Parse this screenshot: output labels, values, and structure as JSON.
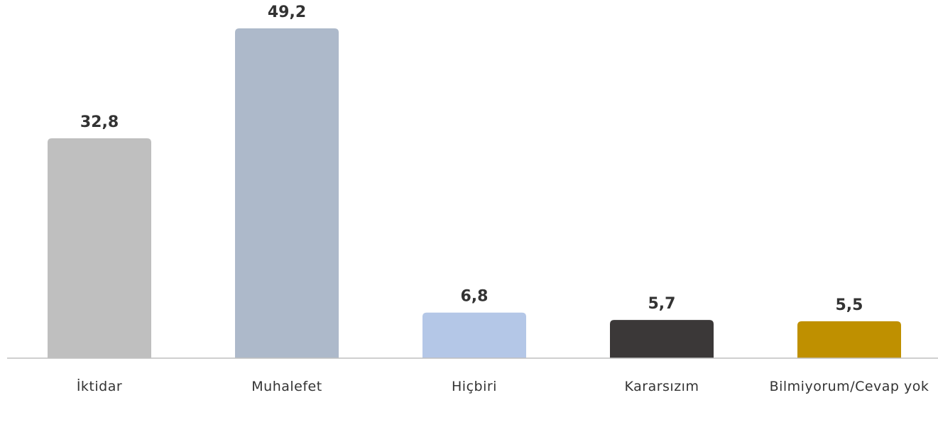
{
  "chart_data": {
    "type": "bar",
    "categories": [
      "İktidar",
      "Muhalefet",
      "Hiçbiri",
      "Kararsızım",
      "Bilmiyorum/Cevap yok"
    ],
    "values": [
      32.8,
      49.2,
      6.8,
      5.7,
      5.5
    ],
    "value_labels": [
      "32,8",
      "49,2",
      "6,8",
      "5,7",
      "5,5"
    ],
    "colors": [
      "#bfbfbf",
      "#adb9ca",
      "#b4c7e7",
      "#3b3838",
      "#bf9000"
    ],
    "ylim": [
      0,
      50
    ]
  }
}
